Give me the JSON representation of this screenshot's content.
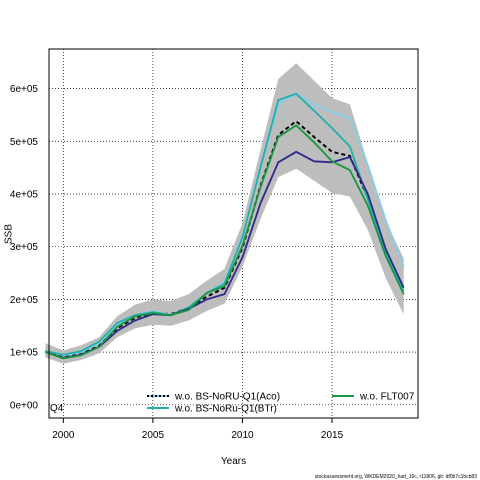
{
  "chart_data": {
    "type": "line",
    "title": "",
    "xlabel": "Years",
    "ylabel": "SSB",
    "xlim": [
      1999.2,
      2019.8
    ],
    "ylim": [
      -25000,
      675000
    ],
    "x_ticks": [
      2000,
      2005,
      2010,
      2015
    ],
    "x_tick_labels": [
      "2000",
      "2005",
      "2010",
      "2015"
    ],
    "y_ticks": [
      0,
      100000,
      200000,
      300000,
      400000,
      500000,
      600000
    ],
    "y_tick_labels": [
      "0e+00",
      "1e+05",
      "2e+05",
      "3e+05",
      "4e+05",
      "5e+05",
      "6e+05"
    ],
    "grid": true,
    "grid_style": "dotted",
    "legend_position": "bottom",
    "annotation": "Q4",
    "footnote": "stockassessment.org, WKDEM2020_had_16c, r11806, git: df0b7c1bcb83",
    "x": [
      1999,
      2000,
      2001,
      2002,
      2003,
      2004,
      2005,
      2006,
      2007,
      2008,
      2009,
      2010,
      2011,
      2012,
      2013,
      2014,
      2015,
      2016,
      2017,
      2018,
      2019
    ],
    "ribbon": {
      "color": "#bdbdbd",
      "lower": [
        90000,
        78000,
        85000,
        98000,
        128000,
        145000,
        152000,
        150000,
        160000,
        178000,
        192000,
        262000,
        352000,
        432000,
        448000,
        425000,
        402000,
        395000,
        332000,
        240000,
        172000
      ],
      "upper": [
        117000,
        103000,
        113000,
        128000,
        168000,
        190000,
        200000,
        197000,
        210000,
        235000,
        258000,
        345000,
        482000,
        618000,
        648000,
        615000,
        582000,
        570000,
        458000,
        348000,
        278000
      ]
    },
    "series": [
      {
        "name": "",
        "color": "#000000",
        "dashed": true,
        "values": [
          102000,
          90000,
          96000,
          112000,
          145000,
          165000,
          175000,
          172000,
          184000,
          205000,
          222000,
          298000,
          415000,
          512000,
          538000,
          508000,
          480000,
          472000,
          392000,
          292000,
          218000
        ]
      },
      {
        "name": "w.o. BS-NoRU-Q1(Aco)",
        "color": "#87ceeb",
        "dashed": false,
        "values": [
          103000,
          94000,
          100000,
          118000,
          152000,
          170000,
          178000,
          171000,
          183000,
          212000,
          232000,
          320000,
          448000,
          570000,
          590000,
          570000,
          555000,
          545000,
          455000,
          350000,
          262000
        ]
      },
      {
        "name": "w.o. BS-NoRu-Q1(BTr)",
        "color": "#20b2aa",
        "dashed": false,
        "values": [
          102000,
          95000,
          102000,
          120000,
          155000,
          170000,
          176000,
          170000,
          185000,
          212000,
          230000,
          318000,
          450000,
          578000,
          590000,
          558000,
          525000,
          490000,
          390000,
          290000,
          215000
        ]
      },
      {
        "name": "",
        "color": "#2e2a8c",
        "dashed": false,
        "values": [
          100000,
          89000,
          95000,
          110000,
          140000,
          160000,
          172000,
          170000,
          182000,
          200000,
          210000,
          280000,
          382000,
          460000,
          480000,
          462000,
          460000,
          470000,
          400000,
          295000,
          222000
        ]
      },
      {
        "name": "w.o. FLT007",
        "color": "#1a9641",
        "dashed": false,
        "values": [
          100000,
          88000,
          94000,
          110000,
          148000,
          168000,
          174000,
          170000,
          180000,
          212000,
          225000,
          302000,
          412000,
          508000,
          530000,
          498000,
          462000,
          445000,
          378000,
          282000,
          210000
        ]
      }
    ]
  }
}
